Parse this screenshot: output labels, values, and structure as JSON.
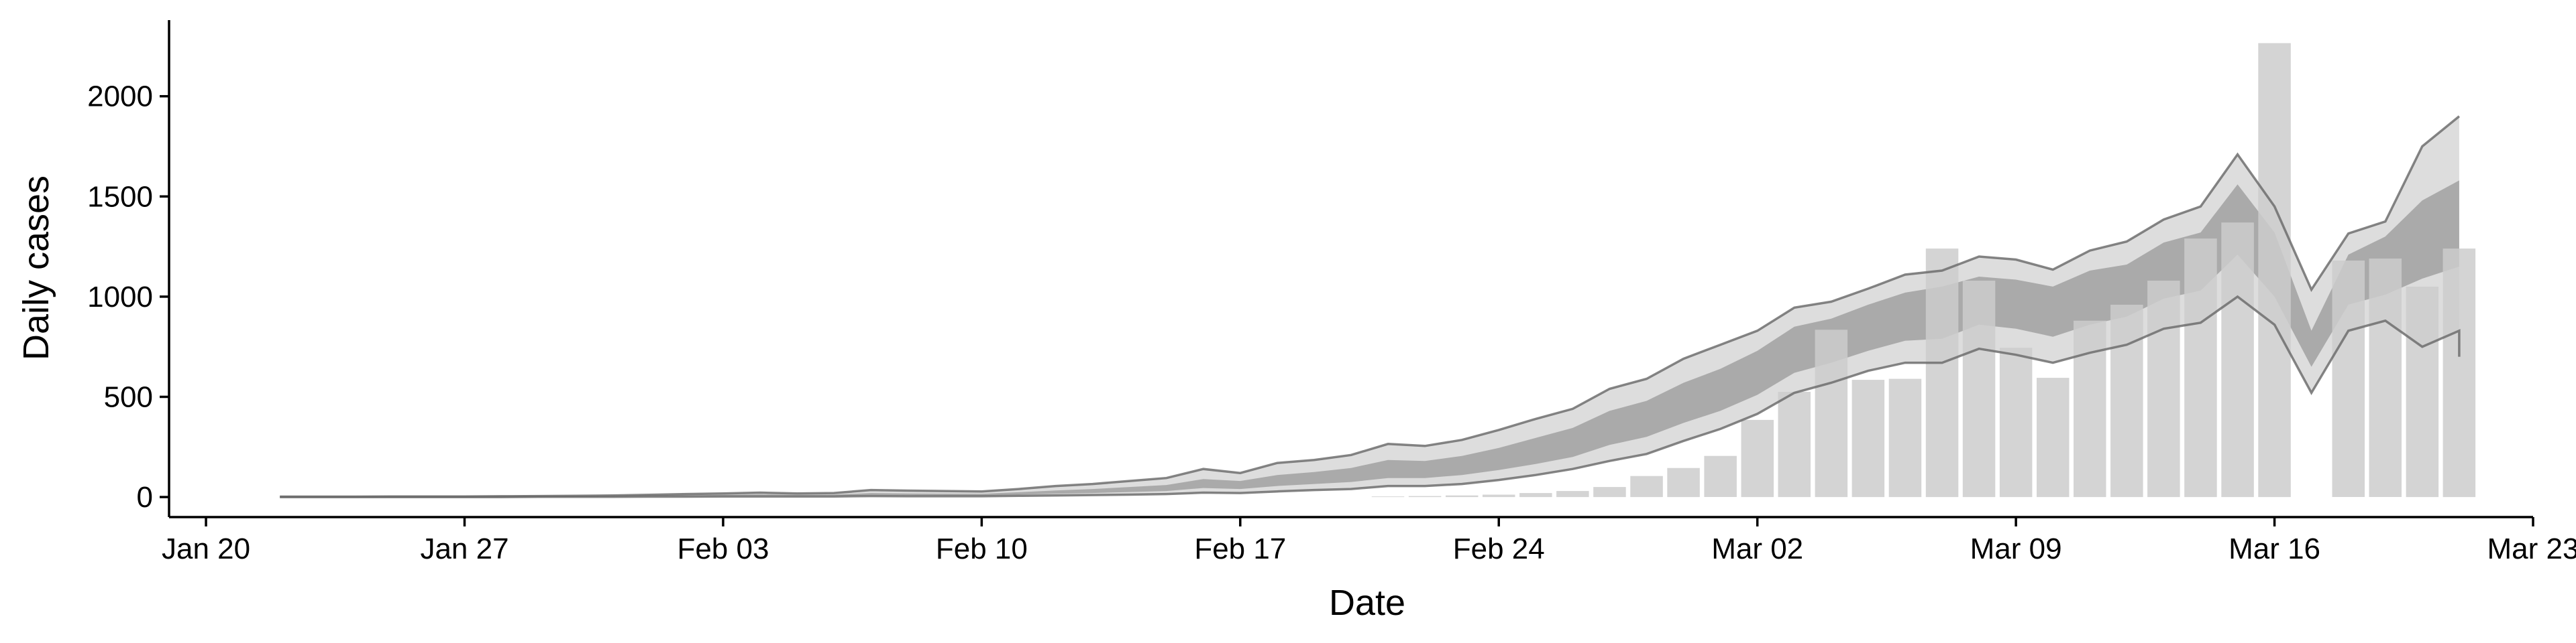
{
  "chart_data": {
    "type": "bar",
    "xlabel": "Date",
    "ylabel": "Daily cases",
    "ylim": [
      -100,
      2380
    ],
    "y_ticks": [
      0,
      500,
      1000,
      1500,
      2000
    ],
    "x_ticks": [
      {
        "date": "2020-01-20",
        "label": "Jan 20"
      },
      {
        "date": "2020-01-27",
        "label": "Jan 27"
      },
      {
        "date": "2020-02-03",
        "label": "Feb 03"
      },
      {
        "date": "2020-02-10",
        "label": "Feb 10"
      },
      {
        "date": "2020-02-17",
        "label": "Feb 17"
      },
      {
        "date": "2020-02-24",
        "label": "Feb 24"
      },
      {
        "date": "2020-03-02",
        "label": "Mar 02"
      },
      {
        "date": "2020-03-09",
        "label": "Mar 09"
      },
      {
        "date": "2020-03-16",
        "label": "Mar 16"
      },
      {
        "date": "2020-03-23",
        "label": "Mar 23"
      }
    ],
    "xlim": [
      "2020-01-19",
      "2020-03-23"
    ],
    "grid": false,
    "colors": {
      "bars": "#cccccc",
      "band_inner": "#aaaaaa",
      "band_outer": "#dddddd",
      "lines": "#666666"
    },
    "observed": {
      "dates": [
        "2020-02-21",
        "2020-02-22",
        "2020-02-23",
        "2020-02-24",
        "2020-02-25",
        "2020-02-26",
        "2020-02-27",
        "2020-02-28",
        "2020-02-29",
        "2020-03-01",
        "2020-03-02",
        "2020-03-03",
        "2020-03-04",
        "2020-03-05",
        "2020-03-06",
        "2020-03-07",
        "2020-03-08",
        "2020-03-09",
        "2020-03-10",
        "2020-03-11",
        "2020-03-12",
        "2020-03-13",
        "2020-03-14",
        "2020-03-15",
        "2020-03-16",
        "2020-03-17",
        "2020-03-18",
        "2020-03-19",
        "2020-03-20",
        "2020-03-21"
      ],
      "values": [
        3,
        5,
        8,
        12,
        20,
        30,
        50,
        105,
        145,
        205,
        385,
        525,
        835,
        585,
        590,
        1240,
        1080,
        745,
        595,
        880,
        960,
        1080,
        1290,
        1370,
        2265,
        0,
        1180,
        1190,
        1050,
        1240
      ]
    },
    "estimate": {
      "dates": [
        "2020-01-22",
        "2020-01-23",
        "2020-01-24",
        "2020-01-25",
        "2020-01-26",
        "2020-01-27",
        "2020-01-28",
        "2020-01-29",
        "2020-01-30",
        "2020-01-31",
        "2020-02-01",
        "2020-02-02",
        "2020-02-03",
        "2020-02-04",
        "2020-02-05",
        "2020-02-06",
        "2020-02-07",
        "2020-02-08",
        "2020-02-09",
        "2020-02-10",
        "2020-02-11",
        "2020-02-12",
        "2020-02-13",
        "2020-02-14",
        "2020-02-15",
        "2020-02-16",
        "2020-02-17",
        "2020-02-18",
        "2020-02-19",
        "2020-02-20",
        "2020-02-21",
        "2020-02-22",
        "2020-02-23",
        "2020-02-24",
        "2020-02-25",
        "2020-02-26",
        "2020-02-27",
        "2020-02-28",
        "2020-02-29",
        "2020-03-01",
        "2020-03-02",
        "2020-03-03",
        "2020-03-04",
        "2020-03-05",
        "2020-03-06",
        "2020-03-07",
        "2020-03-08",
        "2020-03-09",
        "2020-03-10",
        "2020-03-11",
        "2020-03-12",
        "2020-03-13",
        "2020-03-14",
        "2020-03-15",
        "2020-03-16",
        "2020-03-17",
        "2020-03-18",
        "2020-03-19",
        "2020-03-20",
        "2020-03-21"
      ],
      "upper90": [
        2,
        2,
        2,
        3,
        3,
        3,
        4,
        5,
        6,
        8,
        11,
        15,
        18,
        22,
        18,
        20,
        35,
        32,
        30,
        28,
        40,
        55,
        65,
        80,
        95,
        140,
        120,
        170,
        185,
        210,
        265,
        255,
        285,
        335,
        390,
        440,
        540,
        590,
        690,
        760,
        830,
        945,
        975,
        1040,
        1110,
        1130,
        1200,
        1185,
        1135,
        1230,
        1275,
        1385,
        1450,
        1710,
        1450,
        1035,
        1315,
        1375,
        1750,
        1900
      ],
      "upper50": [
        1,
        1,
        1,
        1,
        2,
        2,
        2,
        3,
        3,
        5,
        7,
        9,
        11,
        13,
        11,
        12,
        20,
        18,
        17,
        16,
        24,
        33,
        40,
        50,
        60,
        90,
        80,
        110,
        125,
        145,
        185,
        180,
        205,
        245,
        295,
        345,
        430,
        480,
        570,
        640,
        730,
        850,
        890,
        960,
        1020,
        1050,
        1100,
        1085,
        1050,
        1130,
        1160,
        1270,
        1320,
        1560,
        1320,
        830,
        1210,
        1300,
        1480,
        1580
      ],
      "lower50": [
        0,
        0,
        0,
        1,
        1,
        1,
        1,
        2,
        2,
        3,
        4,
        5,
        6,
        7,
        6,
        6,
        10,
        9,
        8,
        8,
        12,
        16,
        20,
        25,
        30,
        45,
        40,
        55,
        65,
        75,
        95,
        95,
        110,
        135,
        165,
        200,
        260,
        300,
        370,
        430,
        510,
        620,
        670,
        730,
        780,
        790,
        860,
        840,
        800,
        860,
        900,
        990,
        1030,
        1210,
        1000,
        650,
        960,
        1010,
        1090,
        1150
      ],
      "lower90": [
        0,
        0,
        0,
        0,
        0,
        0,
        0,
        1,
        1,
        1,
        2,
        2,
        3,
        3,
        3,
        3,
        5,
        4,
        4,
        4,
        6,
        8,
        10,
        12,
        15,
        22,
        20,
        28,
        35,
        40,
        55,
        55,
        65,
        85,
        110,
        140,
        180,
        215,
        280,
        340,
        415,
        520,
        570,
        630,
        670,
        670,
        740,
        710,
        670,
        720,
        760,
        840,
        870,
        1000,
        860,
        520,
        830,
        880,
        750,
        830
      ],
      "lower_line_end": "2020-03-21",
      "lower_line_last": 700
    }
  }
}
